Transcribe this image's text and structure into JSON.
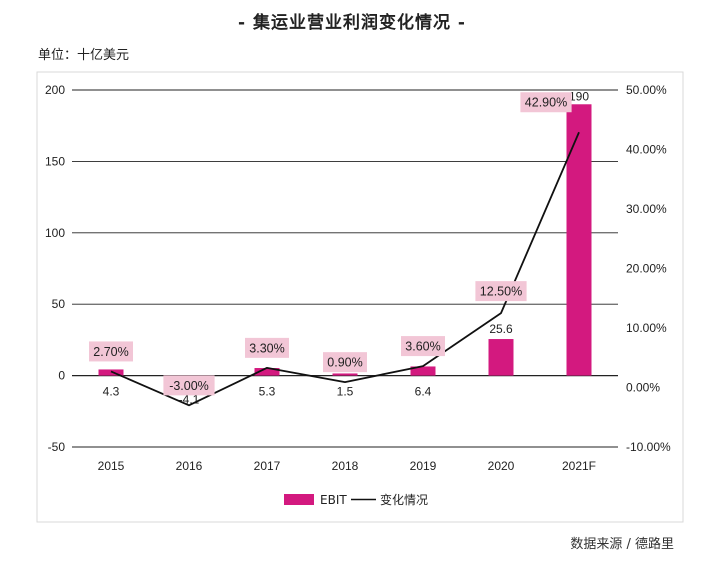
{
  "title": "- 集运业营业利润变化情况 -",
  "unit_label": "单位：十亿美元",
  "source": "数据来源 / 德路里",
  "chart_data": {
    "type": "bar",
    "categories": [
      "2015",
      "2016",
      "2017",
      "2018",
      "2019",
      "2020",
      "2021F"
    ],
    "series": [
      {
        "name": "EBIT",
        "type": "bar",
        "axis": "left",
        "values": [
          4.3,
          -4.1,
          5.3,
          1.5,
          6.4,
          25.6,
          190
        ],
        "labels": [
          "4.3",
          "-4.1",
          "5.3",
          "1.5",
          "6.4",
          "25.6",
          "190"
        ],
        "color": "#d3197f"
      },
      {
        "name": "变化情况",
        "type": "line",
        "axis": "right",
        "values": [
          2.7,
          -3.0,
          3.3,
          0.9,
          3.6,
          12.5,
          42.9
        ],
        "labels": [
          "2.70%",
          "-3.00%",
          "3.30%",
          "0.90%",
          "3.60%",
          "12.50%",
          "42.90%"
        ],
        "color": "#111111"
      }
    ],
    "y_left": {
      "range": [
        -50,
        200
      ],
      "ticks": [
        "-50",
        "0",
        "50",
        "100",
        "150",
        "200"
      ]
    },
    "y_right": {
      "range": [
        -10,
        50
      ],
      "ticks": [
        "-10.00%",
        "0.00%",
        "10.00%",
        "20.00%",
        "30.00%",
        "40.00%",
        "50.00%"
      ]
    },
    "grid": true,
    "legend_position": "bottom-center",
    "label_box_color": "#f2c6d6"
  }
}
